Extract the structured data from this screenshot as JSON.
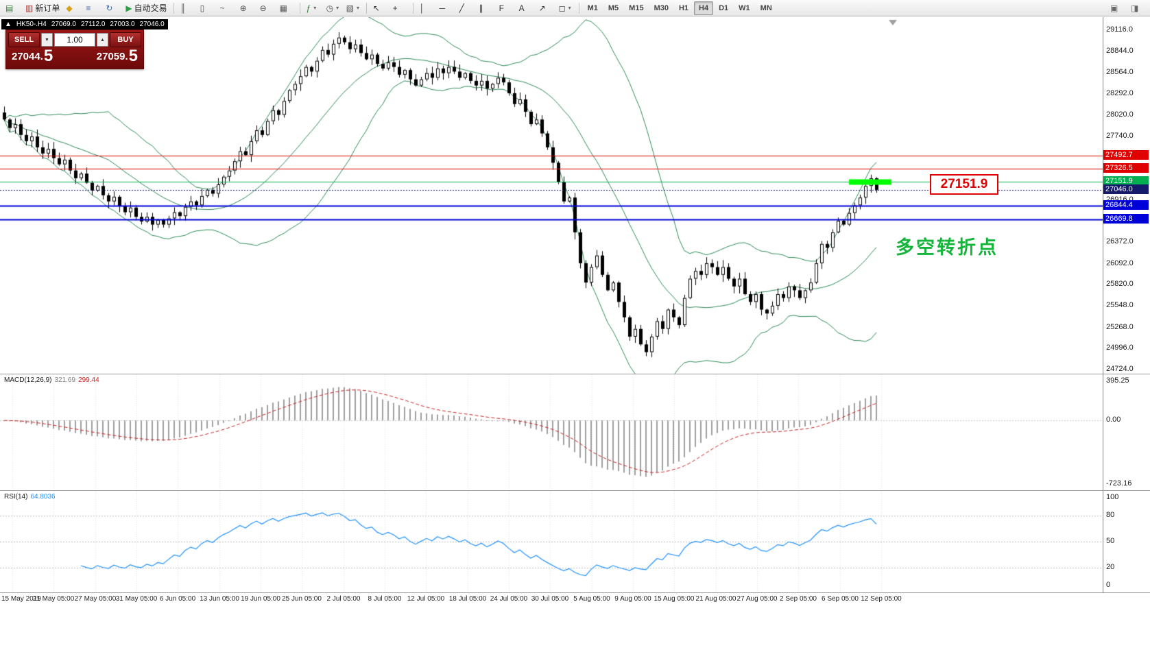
{
  "colors": {
    "band_green": "#2e8b57",
    "hline_red": "#e00000",
    "hline_green": "#00b050",
    "hline_blue": "#0000d8",
    "bid_navy": "#151a6b",
    "highlight_lime": "#00ff00",
    "macd_hist_gray": "#9f9f9f",
    "macd_signal_red": "#cc2222",
    "rsi_blue": "#1e90ff",
    "panel_red": "#8c1111",
    "annotation_green": "#14b53a",
    "annotation_red": "#e30000"
  },
  "toolbar": {
    "groups": [
      {
        "items": [
          {
            "name": "new-chart-button",
            "glyph": "▤",
            "color": "#2e7d32"
          },
          {
            "name": "new-order-button",
            "glyph": "▥",
            "color": "#b03030",
            "label": "新订单"
          },
          {
            "name": "profiles-button",
            "glyph": "◆",
            "color": "#d4a017"
          },
          {
            "name": "market-watch-button",
            "glyph": "≡",
            "color": "#4a6fa5"
          },
          {
            "name": "refresh-button",
            "glyph": "↻",
            "color": "#4a6fa5"
          },
          {
            "name": "autotrading-button",
            "glyph": "▶",
            "color": "#2e9e44",
            "label": "自动交易"
          }
        ]
      },
      {
        "items": [
          {
            "name": "bars-chart-button",
            "glyph": "║",
            "color": "#555555"
          },
          {
            "name": "candles-chart-button",
            "glyph": "▯",
            "color": "#555555"
          },
          {
            "name": "line-chart-button",
            "glyph": "~",
            "color": "#555555"
          },
          {
            "name": "zoom-in-button",
            "glyph": "⊕",
            "color": "#555555"
          },
          {
            "name": "zoom-out-button",
            "glyph": "⊖",
            "color": "#555555"
          },
          {
            "name": "tile-windows-button",
            "glyph": "▦",
            "color": "#555555"
          }
        ]
      },
      {
        "items": [
          {
            "name": "indicators-button",
            "glyph": "ƒ",
            "color": "#2e7d32",
            "dropdown": true
          },
          {
            "name": "periods-button",
            "glyph": "◷",
            "color": "#555555",
            "dropdown": true
          },
          {
            "name": "templates-button",
            "glyph": "▧",
            "color": "#555555",
            "dropdown": true
          }
        ]
      },
      {
        "items": [
          {
            "name": "cursor-button",
            "glyph": "↖",
            "color": "#333333"
          },
          {
            "name": "crosshair-button",
            "glyph": "+",
            "color": "#333333"
          }
        ]
      },
      {
        "items": [
          {
            "name": "vertical-line-button",
            "glyph": "│",
            "color": "#333333"
          },
          {
            "name": "horizontal-line-button",
            "glyph": "─",
            "color": "#333333"
          },
          {
            "name": "trendline-button",
            "glyph": "╱",
            "color": "#333333"
          },
          {
            "name": "channel-button",
            "glyph": "∥",
            "color": "#333333"
          },
          {
            "name": "fibonacci-button",
            "glyph": "F",
            "color": "#333333"
          },
          {
            "name": "text-button",
            "glyph": "A",
            "color": "#333333"
          },
          {
            "name": "arrow-button",
            "glyph": "↗",
            "color": "#333333"
          },
          {
            "name": "shapes-button",
            "glyph": "◻",
            "color": "#333333",
            "dropdown": true
          }
        ]
      }
    ],
    "timeframes": [
      "M1",
      "M5",
      "M15",
      "M30",
      "H1",
      "H4",
      "D1",
      "W1",
      "MN"
    ],
    "active_timeframe": "H4",
    "right_items": [
      {
        "name": "data-window-button",
        "glyph": "▣",
        "color": "#666666"
      },
      {
        "name": "strategy-tester-button",
        "glyph": "◨",
        "color": "#666666"
      }
    ]
  },
  "chart_header": {
    "collapse_glyph": "▲",
    "symbol": "HK50-.H4",
    "open": "27069.0",
    "high": "27112.0",
    "low": "27003.0",
    "close": "27046.0"
  },
  "trade_panel": {
    "sell_label": "SELL",
    "buy_label": "BUY",
    "volume": "1.00",
    "spin_down_glyph": "▼",
    "spin_up_glyph": "▲",
    "sell_price_main": "27044.",
    "sell_price_big": "5",
    "buy_price_main": "27059.",
    "buy_price_big": "5"
  },
  "price_axis": {
    "ticks": [
      29116.0,
      28844.0,
      28564.0,
      28292.0,
      28020.0,
      27740.0,
      26916.0,
      26372.0,
      26092.0,
      25820.0,
      25548.0,
      25268.0,
      24996.0,
      24724.0
    ],
    "line_labels": [
      {
        "value": "27492.7",
        "price": 27492.7,
        "color": "#e00000"
      },
      {
        "value": "27326.5",
        "price": 27326.5,
        "color": "#e00000"
      },
      {
        "value": "27151.9",
        "price": 27151.9,
        "color": "#00b050"
      },
      {
        "value": "27046.0",
        "price": 27046.0,
        "color": "#151a6b"
      },
      {
        "value": "26844.4",
        "price": 26844.4,
        "color": "#0000d8"
      },
      {
        "value": "26669.8",
        "price": 26669.8,
        "color": "#0000d8"
      }
    ]
  },
  "annotations": {
    "price_box": "27151.9",
    "pivot_text": "多空转折点"
  },
  "macd": {
    "name": "MACD(12,26,9)",
    "value1": "321.69",
    "value2": "299.44",
    "axis_top": "395.25",
    "axis_zero": "0.00",
    "axis_bottom": "-723.16"
  },
  "rsi": {
    "name": "RSI(14)",
    "value": "64.8036",
    "axis": [
      100,
      80,
      50,
      20,
      0
    ],
    "levels": [
      80,
      50,
      20
    ]
  },
  "x_axis": {
    "labels": [
      "15 May 2019",
      "21 May 05:00",
      "27 May 05:00",
      "31 May 05:00",
      "6 Jun 05:00",
      "13 Jun 05:00",
      "19 Jun 05:00",
      "25 Jun 05:00",
      "2 Jul 05:00",
      "8 Jul 05:00",
      "12 Jul 05:00",
      "18 Jul 05:00",
      "24 Jul 05:00",
      "30 Jul 05:00",
      "5 Aug 05:00",
      "9 Aug 05:00",
      "15 Aug 05:00",
      "21 Aug 05:00",
      "27 Aug 05:00",
      "2 Sep 05:00",
      "6 Sep 05:00",
      "12 Sep 05:00"
    ]
  },
  "chart_data": {
    "type": "candlestick",
    "symbol": "HK50-.H4",
    "timeframe": "H4",
    "visible_price_range": [
      24724.0,
      29116.0
    ],
    "closes": [
      27960,
      27850,
      27900,
      27760,
      27680,
      27740,
      27600,
      27520,
      27580,
      27460,
      27380,
      27440,
      27300,
      27200,
      27260,
      27140,
      27040,
      27100,
      26980,
      26900,
      26960,
      26840,
      26760,
      26820,
      26700,
      26640,
      26700,
      26600,
      26660,
      26600,
      26680,
      26760,
      26710,
      26830,
      26900,
      26850,
      26970,
      27050,
      27000,
      27120,
      27220,
      27300,
      27420,
      27550,
      27500,
      27680,
      27820,
      27760,
      27940,
      28080,
      28020,
      28200,
      28340,
      28420,
      28520,
      28640,
      28580,
      28720,
      28860,
      28800,
      28940,
      29020,
      28960,
      28870,
      28930,
      28820,
      28740,
      28800,
      28680,
      28620,
      28700,
      28640,
      28540,
      28600,
      28480,
      28400,
      28480,
      28560,
      28500,
      28620,
      28560,
      28640,
      28580,
      28500,
      28560,
      28460,
      28400,
      28460,
      28360,
      28420,
      28500,
      28440,
      28300,
      28160,
      28220,
      28060,
      27900,
      27960,
      27780,
      27600,
      27400,
      27150,
      26900,
      26950,
      26500,
      26100,
      25850,
      26050,
      26200,
      25950,
      25750,
      25850,
      25600,
      25400,
      25150,
      25250,
      25050,
      24950,
      25150,
      25350,
      25250,
      25500,
      25400,
      25300,
      25650,
      25900,
      26000,
      25950,
      26100,
      26050,
      25950,
      26050,
      25900,
      25800,
      25900,
      25700,
      25600,
      25700,
      25500,
      25450,
      25550,
      25700,
      25650,
      25800,
      25750,
      25650,
      25750,
      25850,
      26100,
      26350,
      26300,
      26500,
      26650,
      26600,
      26750,
      26850,
      26950,
      27100,
      27200,
      27050
    ],
    "indicators": [
      {
        "name": "Bollinger Bands",
        "color": "#2e8b57"
      },
      {
        "name": "MACD(12,26,9)",
        "values": [
          321.69,
          299.44
        ]
      },
      {
        "name": "RSI(14)",
        "value": 64.8036
      }
    ],
    "horizontal_lines": [
      {
        "price": 27492.7,
        "color": "#e00000"
      },
      {
        "price": 27326.5,
        "color": "#e00000"
      },
      {
        "price": 27151.9,
        "color": "#00b050",
        "highlighted": true
      },
      {
        "price": 27046.0,
        "color": "#151a6b",
        "type": "bid"
      },
      {
        "price": 26844.4,
        "color": "#0000d8"
      },
      {
        "price": 26669.8,
        "color": "#0000d8"
      }
    ]
  }
}
